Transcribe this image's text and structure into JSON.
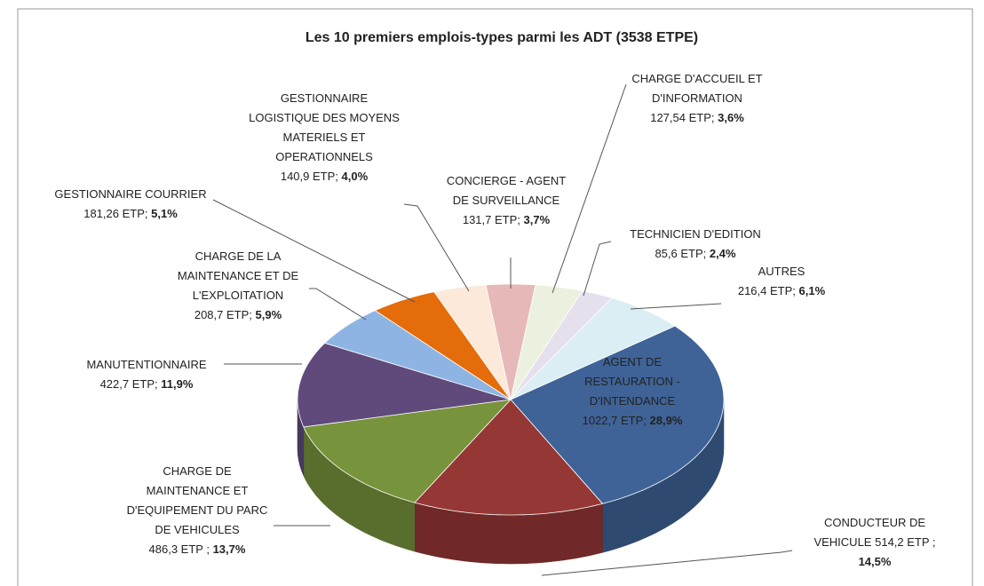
{
  "chart_data": {
    "type": "pie3d",
    "title": "Les 10 premiers emplois-types parmi les ADT (3538 ETPE)",
    "categories": [
      "AGENT DE\nRESTAURATION -\nD'INTENDANCE",
      "CONDUCTEUR DE\nVEHICULE",
      "CHARGE DE\nMAINTENANCE ET\nD'EQUIPEMENT DU PARC\nDE VEHICULES",
      "MANUTENTIONNAIRE",
      "CHARGE DE LA\nMAINTENANCE ET DE\nL'EXPLOITATION",
      "GESTIONNAIRE COURRIER",
      "GESTIONNAIRE\nLOGISTIQUE DES MOYENS\nMATERIELS ET\nOPERATIONNELS",
      "CONCIERGE - AGENT\nDE SURVEILLANCE",
      "CHARGE D'ACCUEIL ET\nD'INFORMATION",
      "TECHNICIEN D'EDITION",
      "AUTRES"
    ],
    "values": [
      1022.7,
      514.2,
      486.3,
      422.7,
      208.7,
      181.26,
      140.9,
      131.7,
      127.54,
      85.6,
      216.4
    ],
    "value_labels": [
      "1022,7 ETP;",
      "514,2 ETP ;",
      "486,3 ETP ;",
      "422,7 ETP;",
      "208,7 ETP;",
      "181,26 ETP;",
      "140,9 ETP;",
      "131,7 ETP;",
      "127,54 ETP;",
      "85,6 ETP;",
      "216,4 ETP;"
    ],
    "percent_labels": [
      "28,9%",
      "14,5%",
      "13,7%",
      "11,9%",
      "5,9%",
      "5,1%",
      "4,0%",
      "3,7%",
      "3,6%",
      "2,4%",
      "6,1%"
    ],
    "colors": [
      "#3f6397",
      "#953735",
      "#77933c",
      "#604a7b",
      "#8eb4e3",
      "#e46c0a",
      "#fde9d9",
      "#e6b9b8",
      "#ebf1de",
      "#e5e0ec",
      "#dbeef4"
    ]
  }
}
